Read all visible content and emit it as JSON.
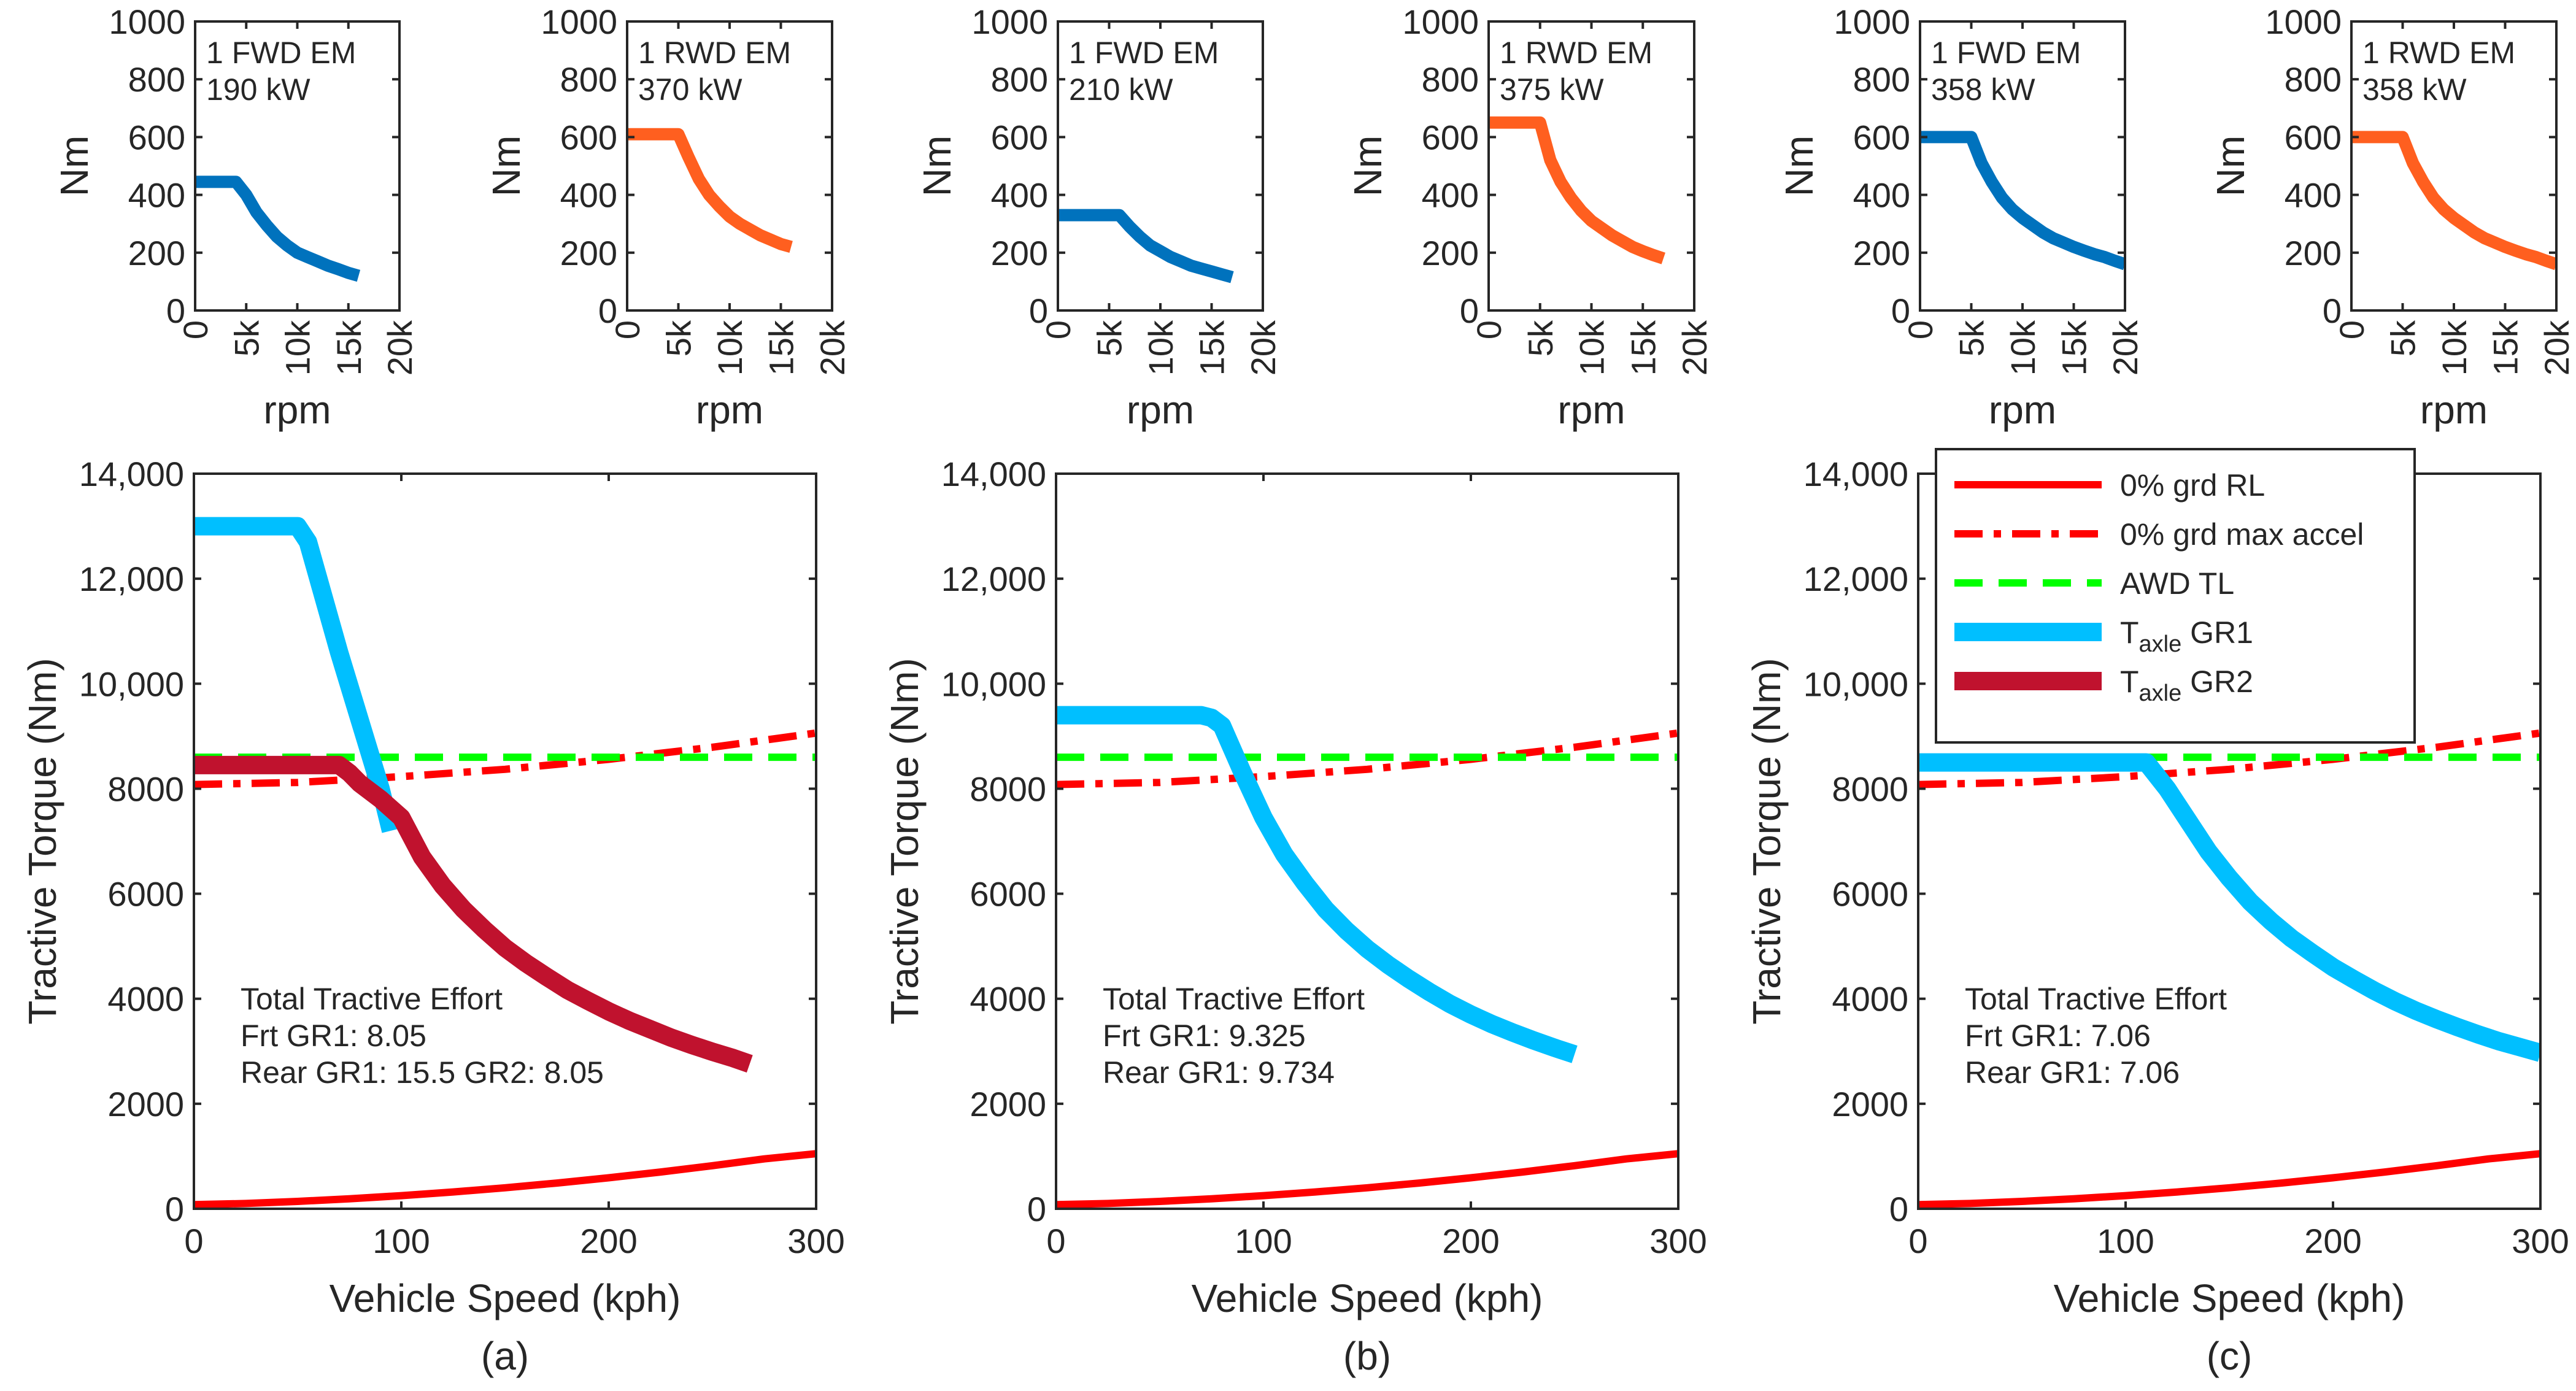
{
  "chart_data": [
    {
      "id": "a1",
      "type": "line",
      "series_label": "1 FWD EM",
      "power_label": "190 kW",
      "color": "#0072BD",
      "xlabel": "rpm",
      "ylabel": "Nm",
      "xlim": [
        0,
        20000
      ],
      "ylim": [
        0,
        1000
      ],
      "xticks": [
        0,
        5000,
        10000,
        15000,
        20000
      ],
      "xticklabels": [
        "0",
        "5k",
        "10k",
        "15k",
        "20k"
      ],
      "yticks": [
        0,
        200,
        400,
        600,
        800,
        1000
      ],
      "yticklabels": [
        "0",
        "200",
        "400",
        "600",
        "800",
        "1000"
      ],
      "x": [
        0,
        1000,
        2000,
        3000,
        4000,
        5000,
        6000,
        7000,
        8000,
        9000,
        10000,
        11000,
        12000,
        13000,
        14000,
        15000,
        16000
      ],
      "y": [
        445,
        445,
        445,
        445,
        445,
        400,
        340,
        295,
        255,
        225,
        200,
        185,
        170,
        155,
        143,
        130,
        120
      ]
    },
    {
      "id": "a2",
      "type": "line",
      "series_label": "1 RWD EM",
      "power_label": "370 kW",
      "color": "#FF5F1F",
      "xlabel": "rpm",
      "ylabel": "Nm",
      "xlim": [
        0,
        20000
      ],
      "ylim": [
        0,
        1000
      ],
      "xticks": [
        0,
        5000,
        10000,
        15000,
        20000
      ],
      "xticklabels": [
        "0",
        "5k",
        "10k",
        "15k",
        "20k"
      ],
      "yticks": [
        0,
        200,
        400,
        600,
        800,
        1000
      ],
      "yticklabels": [
        "0",
        "200",
        "400",
        "600",
        "800",
        "1000"
      ],
      "x": [
        0,
        1000,
        2000,
        3000,
        4000,
        5000,
        6000,
        7000,
        8000,
        9000,
        10000,
        11000,
        12000,
        13000,
        14000,
        15000,
        16000
      ],
      "y": [
        610,
        610,
        610,
        610,
        610,
        610,
        530,
        455,
        400,
        360,
        325,
        300,
        280,
        260,
        245,
        230,
        220
      ]
    },
    {
      "id": "b1",
      "type": "line",
      "series_label": "1 FWD EM",
      "power_label": "210 kW",
      "color": "#0072BD",
      "xlabel": "rpm",
      "ylabel": "Nm",
      "xlim": [
        0,
        20000
      ],
      "ylim": [
        0,
        1000
      ],
      "xticks": [
        0,
        5000,
        10000,
        15000,
        20000
      ],
      "xticklabels": [
        "0",
        "5k",
        "10k",
        "15k",
        "20k"
      ],
      "yticks": [
        0,
        200,
        400,
        600,
        800,
        1000
      ],
      "yticklabels": [
        "0",
        "200",
        "400",
        "600",
        "800",
        "1000"
      ],
      "x": [
        0,
        1000,
        2000,
        3000,
        4000,
        5000,
        6000,
        7000,
        8000,
        9000,
        10000,
        11000,
        12000,
        13000,
        14000,
        15000,
        16000,
        17000
      ],
      "y": [
        330,
        330,
        330,
        330,
        330,
        330,
        330,
        290,
        255,
        225,
        205,
        185,
        170,
        155,
        145,
        135,
        125,
        115
      ]
    },
    {
      "id": "b2",
      "type": "line",
      "series_label": "1 RWD EM",
      "power_label": "375 kW",
      "color": "#FF5F1F",
      "xlabel": "rpm",
      "ylabel": "Nm",
      "xlim": [
        0,
        20000
      ],
      "ylim": [
        0,
        1000
      ],
      "xticks": [
        0,
        5000,
        10000,
        15000,
        20000
      ],
      "xticklabels": [
        "0",
        "5k",
        "10k",
        "15k",
        "20k"
      ],
      "yticks": [
        0,
        200,
        400,
        600,
        800,
        1000
      ],
      "yticklabels": [
        "0",
        "200",
        "400",
        "600",
        "800",
        "1000"
      ],
      "x": [
        0,
        1000,
        2000,
        3000,
        4000,
        5000,
        6000,
        7000,
        8000,
        9000,
        10000,
        11000,
        12000,
        13000,
        14000,
        15000,
        16000,
        17000
      ],
      "y": [
        650,
        650,
        650,
        650,
        650,
        650,
        520,
        445,
        390,
        345,
        310,
        285,
        260,
        240,
        220,
        205,
        192,
        180
      ]
    },
    {
      "id": "c1",
      "type": "line",
      "series_label": "1 FWD EM",
      "power_label": "358 kW",
      "color": "#0072BD",
      "xlabel": "rpm",
      "ylabel": "Nm",
      "xlim": [
        0,
        20000
      ],
      "ylim": [
        0,
        1000
      ],
      "xticks": [
        0,
        5000,
        10000,
        15000,
        20000
      ],
      "xticklabels": [
        "0",
        "5k",
        "10k",
        "15k",
        "20k"
      ],
      "yticks": [
        0,
        200,
        400,
        600,
        800,
        1000
      ],
      "yticklabels": [
        "0",
        "200",
        "400",
        "600",
        "800",
        "1000"
      ],
      "x": [
        0,
        1000,
        2000,
        3000,
        4000,
        5000,
        6000,
        7000,
        8000,
        9000,
        10000,
        11000,
        12000,
        13000,
        14000,
        15000,
        16000,
        17000,
        18000,
        19000,
        20000
      ],
      "y": [
        600,
        600,
        600,
        600,
        600,
        600,
        510,
        445,
        390,
        350,
        320,
        295,
        270,
        250,
        235,
        220,
        207,
        195,
        185,
        172,
        160
      ]
    },
    {
      "id": "c2",
      "type": "line",
      "series_label": "1 RWD EM",
      "power_label": "358 kW",
      "color": "#FF5F1F",
      "xlabel": "rpm",
      "ylabel": "Nm",
      "xlim": [
        0,
        20000
      ],
      "ylim": [
        0,
        1000
      ],
      "xticks": [
        0,
        5000,
        10000,
        15000,
        20000
      ],
      "xticklabels": [
        "0",
        "5k",
        "10k",
        "15k",
        "20k"
      ],
      "yticks": [
        0,
        200,
        400,
        600,
        800,
        1000
      ],
      "yticklabels": [
        "0",
        "200",
        "400",
        "600",
        "800",
        "1000"
      ],
      "x": [
        0,
        1000,
        2000,
        3000,
        4000,
        5000,
        6000,
        7000,
        8000,
        9000,
        10000,
        11000,
        12000,
        13000,
        14000,
        15000,
        16000,
        17000,
        18000,
        19000,
        20000
      ],
      "y": [
        600,
        600,
        600,
        600,
        600,
        600,
        510,
        445,
        390,
        350,
        320,
        295,
        270,
        250,
        235,
        220,
        207,
        195,
        185,
        172,
        160
      ]
    },
    {
      "id": "A",
      "type": "line",
      "caption": "(a)",
      "xlabel": "Vehicle Speed (kph)",
      "ylabel": "Tractive Torque (Nm)",
      "xlim": [
        0,
        300
      ],
      "ylim": [
        0,
        14000
      ],
      "xticks": [
        0,
        100,
        200,
        300
      ],
      "xticklabels": [
        "0",
        "100",
        "200",
        "300"
      ],
      "yticks": [
        0,
        2000,
        4000,
        6000,
        8000,
        10000,
        12000,
        14000
      ],
      "yticklabels": [
        "0",
        "2000",
        "4000",
        "6000",
        "8000",
        "10,000",
        "12,000",
        "14,000"
      ],
      "annotation": [
        "Total Tractive Effort",
        "Frt GR1: 8.05",
        "Rear GR1: 15.5  GR2: 8.05"
      ],
      "series": [
        {
          "name": "0% grd RL",
          "style": "solid",
          "color": "#FF0000",
          "x": [
            0,
            25,
            50,
            75,
            100,
            125,
            150,
            175,
            200,
            225,
            250,
            275,
            300
          ],
          "y": [
            80,
            100,
            140,
            190,
            250,
            320,
            400,
            490,
            590,
            700,
            820,
            950,
            1050
          ]
        },
        {
          "name": "0% grd max accel",
          "style": "dashdot",
          "color": "#FF0000",
          "x": [
            0,
            50,
            100,
            150,
            200,
            250,
            300
          ],
          "y": [
            8080,
            8120,
            8230,
            8370,
            8560,
            8790,
            9060
          ]
        },
        {
          "name": "AWD TL",
          "style": "dashed",
          "color": "#00FF00",
          "x": [
            0,
            300
          ],
          "y": [
            8600,
            8600
          ]
        },
        {
          "name": "T_axle GR1",
          "style": "thick",
          "color": "#00BFFF",
          "x": [
            0,
            10,
            20,
            30,
            40,
            50,
            55,
            60,
            70,
            80,
            90,
            95
          ],
          "y": [
            13000,
            13000,
            13000,
            13000,
            13000,
            13000,
            12700,
            12000,
            10600,
            9300,
            8000,
            7200
          ]
        },
        {
          "name": "T_axle GR2",
          "style": "thick",
          "color": "#C0122E",
          "x": [
            0,
            10,
            20,
            30,
            40,
            50,
            60,
            70,
            75,
            80,
            90,
            100,
            110,
            120,
            130,
            140,
            150,
            160,
            170,
            180,
            190,
            200,
            210,
            220,
            230,
            240,
            250,
            260,
            268
          ],
          "y": [
            8450,
            8450,
            8450,
            8450,
            8450,
            8450,
            8450,
            8450,
            8300,
            8100,
            7800,
            7450,
            6700,
            6150,
            5700,
            5320,
            4970,
            4680,
            4420,
            4170,
            3960,
            3760,
            3580,
            3420,
            3260,
            3120,
            2990,
            2870,
            2760
          ]
        }
      ]
    },
    {
      "id": "B",
      "type": "line",
      "caption": "(b)",
      "xlabel": "Vehicle Speed (kph)",
      "ylabel": "Tractive Torque (Nm)",
      "xlim": [
        0,
        300
      ],
      "ylim": [
        0,
        14000
      ],
      "xticks": [
        0,
        100,
        200,
        300
      ],
      "xticklabels": [
        "0",
        "100",
        "200",
        "300"
      ],
      "yticks": [
        0,
        2000,
        4000,
        6000,
        8000,
        10000,
        12000,
        14000
      ],
      "yticklabels": [
        "0",
        "2000",
        "4000",
        "6000",
        "8000",
        "10,000",
        "12,000",
        "14,000"
      ],
      "annotation": [
        "Total Tractive Effort",
        "Frt GR1: 9.325",
        "Rear GR1: 9.734"
      ],
      "series": [
        {
          "name": "0% grd RL",
          "style": "solid",
          "color": "#FF0000",
          "x": [
            0,
            25,
            50,
            75,
            100,
            125,
            150,
            175,
            200,
            225,
            250,
            275,
            300
          ],
          "y": [
            80,
            100,
            140,
            190,
            250,
            320,
            400,
            490,
            590,
            700,
            820,
            950,
            1050
          ]
        },
        {
          "name": "0% grd max accel",
          "style": "dashdot",
          "color": "#FF0000",
          "x": [
            0,
            50,
            100,
            150,
            200,
            250,
            300
          ],
          "y": [
            8080,
            8120,
            8230,
            8370,
            8560,
            8790,
            9060
          ]
        },
        {
          "name": "AWD TL",
          "style": "dashed",
          "color": "#00FF00",
          "x": [
            0,
            300
          ],
          "y": [
            8600,
            8600
          ]
        },
        {
          "name": "T_axle GR1",
          "style": "thick",
          "color": "#00BFFF",
          "x": [
            0,
            20,
            40,
            60,
            70,
            75,
            80,
            90,
            100,
            110,
            120,
            130,
            140,
            150,
            160,
            170,
            180,
            190,
            200,
            210,
            220,
            230,
            240,
            250
          ],
          "y": [
            9400,
            9400,
            9400,
            9400,
            9400,
            9350,
            9200,
            8300,
            7450,
            6750,
            6200,
            5700,
            5300,
            4950,
            4650,
            4380,
            4130,
            3900,
            3700,
            3520,
            3360,
            3210,
            3070,
            2940
          ]
        }
      ]
    },
    {
      "id": "C",
      "type": "line",
      "caption": "(c)",
      "xlabel": "Vehicle Speed (kph)",
      "ylabel": "Tractive Torque (Nm)",
      "xlim": [
        0,
        300
      ],
      "ylim": [
        0,
        14000
      ],
      "xticks": [
        0,
        100,
        200,
        300
      ],
      "xticklabels": [
        "0",
        "100",
        "200",
        "300"
      ],
      "yticks": [
        0,
        2000,
        4000,
        6000,
        8000,
        10000,
        12000,
        14000
      ],
      "yticklabels": [
        "0",
        "2000",
        "4000",
        "6000",
        "8000",
        "10,000",
        "12,000",
        "14,000"
      ],
      "annotation": [
        "Total Tractive Effort",
        "Frt GR1: 7.06",
        "Rear GR1: 7.06"
      ],
      "legend": {
        "position": "top-left",
        "entries": [
          {
            "label": "0% grd RL",
            "style": "solid",
            "color": "#FF0000"
          },
          {
            "label": "0% grd max accel",
            "style": "dashdot",
            "color": "#FF0000"
          },
          {
            "label": "AWD TL",
            "style": "dashed",
            "color": "#00FF00"
          },
          {
            "label": "T",
            "sub": "axle",
            "suffix": " GR1",
            "style": "thick",
            "color": "#00BFFF"
          },
          {
            "label": "T",
            "sub": "axle",
            "suffix": " GR2",
            "style": "thick",
            "color": "#C0122E"
          }
        ]
      },
      "series": [
        {
          "name": "0% grd RL",
          "style": "solid",
          "color": "#FF0000",
          "x": [
            0,
            25,
            50,
            75,
            100,
            125,
            150,
            175,
            200,
            225,
            250,
            275,
            300
          ],
          "y": [
            80,
            100,
            140,
            190,
            250,
            320,
            400,
            490,
            590,
            700,
            820,
            950,
            1050
          ]
        },
        {
          "name": "0% grd max accel",
          "style": "dashdot",
          "color": "#FF0000",
          "x": [
            0,
            50,
            100,
            150,
            200,
            250,
            300
          ],
          "y": [
            8080,
            8120,
            8230,
            8370,
            8560,
            8790,
            9060
          ]
        },
        {
          "name": "AWD TL",
          "style": "dashed",
          "color": "#00FF00",
          "x": [
            0,
            300
          ],
          "y": [
            8600,
            8600
          ]
        },
        {
          "name": "T_axle GR1",
          "style": "thick",
          "color": "#00BFFF",
          "x": [
            0,
            20,
            40,
            60,
            80,
            100,
            110,
            120,
            130,
            140,
            150,
            160,
            170,
            180,
            190,
            200,
            210,
            220,
            230,
            240,
            250,
            260,
            270,
            280,
            290,
            300
          ],
          "y": [
            8500,
            8500,
            8500,
            8500,
            8500,
            8500,
            8500,
            8000,
            7400,
            6800,
            6300,
            5850,
            5480,
            5150,
            4870,
            4600,
            4370,
            4150,
            3950,
            3770,
            3610,
            3460,
            3320,
            3190,
            3080,
            2970
          ]
        }
      ]
    }
  ]
}
